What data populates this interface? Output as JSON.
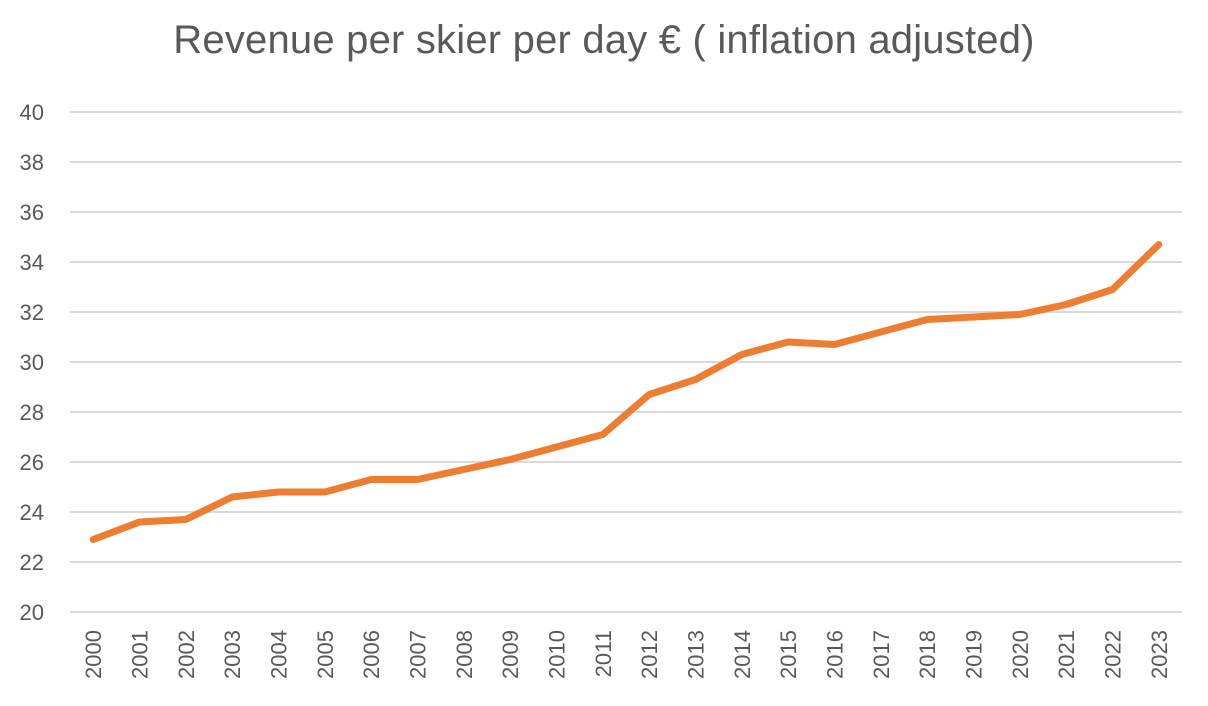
{
  "chart_data": {
    "type": "line",
    "title": "Revenue per skier per day € ( inflation adjusted)",
    "xlabel": "",
    "ylabel": "",
    "categories": [
      "2000",
      "2001",
      "2002",
      "2003",
      "2004",
      "2005",
      "2006",
      "2007",
      "2008",
      "2009",
      "2010",
      "2011",
      "2012",
      "2013",
      "2014",
      "2015",
      "2016",
      "2017",
      "2018",
      "2019",
      "2020",
      "2021",
      "2022",
      "2023"
    ],
    "series": [
      {
        "values": [
          22.9,
          23.6,
          23.7,
          24.6,
          24.8,
          24.8,
          25.3,
          25.3,
          25.7,
          26.1,
          26.6,
          27.1,
          28.7,
          29.3,
          30.3,
          30.8,
          30.7,
          31.2,
          31.7,
          31.8,
          31.9,
          32.3,
          32.9,
          34.7
        ],
        "color": "#ed7d31"
      }
    ],
    "ylim": [
      20,
      40
    ],
    "yticks": [
      "20",
      "22",
      "24",
      "26",
      "28",
      "30",
      "32",
      "34",
      "36",
      "38",
      "40"
    ],
    "grid": true,
    "legend": "none"
  }
}
